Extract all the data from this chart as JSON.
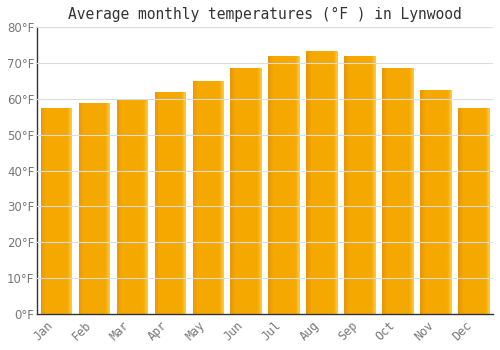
{
  "title": "Average monthly temperatures (°F ) in Lynwood",
  "months": [
    "Jan",
    "Feb",
    "Mar",
    "Apr",
    "May",
    "Jun",
    "Jul",
    "Aug",
    "Sep",
    "Oct",
    "Nov",
    "Dec"
  ],
  "values": [
    57.5,
    59.0,
    60.0,
    62.0,
    65.0,
    68.5,
    72.0,
    73.5,
    72.0,
    68.5,
    62.5,
    57.5
  ],
  "bar_color_dark": "#E8960A",
  "bar_color_mid": "#F5A800",
  "bar_color_light": "#FFCC44",
  "background_color": "#FFFFFF",
  "grid_color": "#DDDDDD",
  "title_color": "#333333",
  "tick_label_color": "#777777",
  "axis_line_color": "#333333",
  "ylim": [
    0,
    80
  ],
  "ytick_step": 10,
  "tick_fontsize": 8.5,
  "title_fontsize": 10.5,
  "bar_width": 0.82
}
